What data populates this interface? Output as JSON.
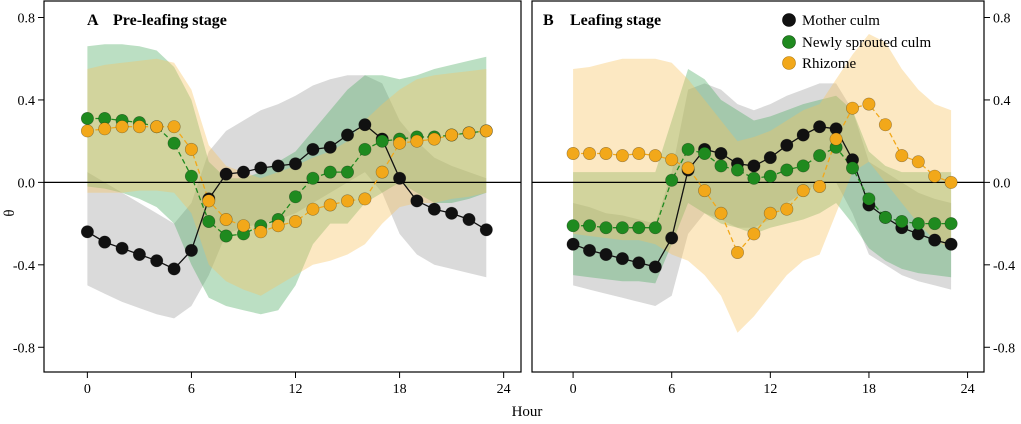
{
  "chart_data": {
    "type": "line",
    "xlabel": "Hour",
    "ylabel": "θ",
    "xlim": [
      -2.5,
      25
    ],
    "ylim": [
      -0.92,
      0.88
    ],
    "xticks": [
      "0",
      "6",
      "12",
      "18",
      "24"
    ],
    "yticks_left": [
      "0.8",
      "0.4",
      "0.0",
      "-0.4",
      "-0.8"
    ],
    "yticks_right": [
      "0.8",
      "0.4",
      "0.0",
      "-0.4",
      "-0.8"
    ],
    "legend": {
      "placement": "top-right",
      "entries": [
        "Mother culm",
        "Newly sprouted culm",
        "Rhizome"
      ]
    },
    "series_styles": [
      {
        "name": "Mother culm",
        "color": "#111111",
        "line": "solid",
        "band": "#9e9e9e"
      },
      {
        "name": "Newly sprouted culm",
        "color": "#1f8a1f",
        "line": "dashed",
        "band": "#4dab62"
      },
      {
        "name": "Rhizome",
        "color": "#f2a81a",
        "line": "dashed",
        "band": "#f6c35e"
      }
    ],
    "panels": [
      {
        "letter": "A",
        "title": "Pre-leafing stage",
        "x": [
          0,
          1,
          2,
          3,
          4,
          5,
          6,
          7,
          8,
          9,
          10,
          11,
          12,
          13,
          14,
          15,
          16,
          17,
          18,
          19,
          20,
          21,
          22,
          23
        ],
        "series": [
          {
            "name": "Mother culm",
            "values": [
              -0.24,
              -0.29,
              -0.32,
              -0.35,
              -0.38,
              -0.42,
              -0.33,
              -0.08,
              0.04,
              0.05,
              0.07,
              0.08,
              0.09,
              0.16,
              0.17,
              0.23,
              0.28,
              0.21,
              0.02,
              -0.09,
              -0.13,
              -0.15,
              -0.18,
              -0.23
            ],
            "upper": [
              0.05,
              0.0,
              -0.05,
              -0.1,
              -0.15,
              -0.2,
              -0.1,
              0.15,
              0.25,
              0.3,
              0.35,
              0.38,
              0.42,
              0.47,
              0.5,
              0.52,
              0.52,
              0.48,
              0.3,
              0.2,
              0.12,
              0.08,
              0.05,
              0.02
            ],
            "lower": [
              -0.5,
              -0.54,
              -0.58,
              -0.61,
              -0.64,
              -0.66,
              -0.6,
              -0.45,
              -0.25,
              -0.22,
              -0.2,
              -0.18,
              -0.15,
              -0.1,
              -0.05,
              0.0,
              0.05,
              -0.05,
              -0.25,
              -0.35,
              -0.4,
              -0.42,
              -0.44,
              -0.46
            ]
          },
          {
            "name": "Newly sprouted culm",
            "values": [
              0.31,
              0.31,
              0.3,
              0.29,
              0.27,
              0.19,
              0.03,
              -0.19,
              -0.26,
              -0.25,
              -0.21,
              -0.18,
              -0.07,
              0.02,
              0.05,
              0.05,
              0.16,
              0.2,
              0.21,
              0.22,
              0.22,
              0.23,
              0.24,
              0.25
            ],
            "upper": [
              0.66,
              0.67,
              0.67,
              0.66,
              0.64,
              0.56,
              0.4,
              0.1,
              0.02,
              0.02,
              0.05,
              0.1,
              0.15,
              0.25,
              0.35,
              0.45,
              0.52,
              0.52,
              0.5,
              0.52,
              0.55,
              0.57,
              0.59,
              0.61
            ],
            "lower": [
              -0.02,
              -0.03,
              -0.05,
              -0.08,
              -0.12,
              -0.2,
              -0.4,
              -0.56,
              -0.6,
              -0.62,
              -0.64,
              -0.62,
              -0.5,
              -0.3,
              -0.2,
              -0.2,
              -0.1,
              -0.05,
              0.0,
              -0.05,
              -0.1,
              -0.1,
              -0.08,
              -0.05
            ]
          },
          {
            "name": "Rhizome",
            "values": [
              0.25,
              0.26,
              0.27,
              0.27,
              0.27,
              0.27,
              0.16,
              -0.09,
              -0.18,
              -0.21,
              -0.24,
              -0.21,
              -0.19,
              -0.13,
              -0.11,
              -0.09,
              -0.08,
              0.05,
              0.19,
              0.2,
              0.21,
              0.23,
              0.24,
              0.25
            ],
            "upper": [
              0.55,
              0.57,
              0.58,
              0.59,
              0.6,
              0.58,
              0.45,
              0.18,
              0.08,
              0.05,
              0.02,
              0.05,
              0.08,
              0.12,
              0.15,
              0.2,
              0.3,
              0.38,
              0.45,
              0.5,
              0.52,
              0.53,
              0.54,
              0.55
            ],
            "lower": [
              -0.05,
              -0.05,
              -0.05,
              -0.04,
              -0.04,
              -0.05,
              -0.15,
              -0.4,
              -0.48,
              -0.52,
              -0.55,
              -0.5,
              -0.45,
              -0.4,
              -0.38,
              -0.35,
              -0.3,
              -0.2,
              -0.12,
              -0.1,
              -0.1,
              -0.08,
              -0.07,
              -0.05
            ]
          }
        ]
      },
      {
        "letter": "B",
        "title": "Leafing stage",
        "x": [
          0,
          1,
          2,
          3,
          4,
          5,
          6,
          7,
          8,
          9,
          10,
          11,
          12,
          13,
          14,
          15,
          16,
          17,
          18,
          19,
          20,
          21,
          22,
          23
        ],
        "series": [
          {
            "name": "Mother culm",
            "values": [
              -0.3,
              -0.33,
              -0.35,
              -0.37,
              -0.39,
              -0.41,
              -0.27,
              0.06,
              0.16,
              0.14,
              0.09,
              0.08,
              0.12,
              0.18,
              0.23,
              0.27,
              0.26,
              0.11,
              -0.11,
              -0.17,
              -0.22,
              -0.25,
              -0.28,
              -0.3
            ],
            "upper": [
              -0.1,
              -0.12,
              -0.15,
              -0.16,
              -0.18,
              -0.2,
              0.05,
              0.45,
              0.48,
              0.45,
              0.38,
              0.35,
              0.38,
              0.42,
              0.45,
              0.48,
              0.48,
              0.35,
              0.1,
              0.05,
              0.0,
              -0.05,
              -0.08,
              -0.1
            ],
            "lower": [
              -0.5,
              -0.52,
              -0.54,
              -0.56,
              -0.58,
              -0.6,
              -0.55,
              -0.25,
              -0.15,
              -0.18,
              -0.22,
              -0.22,
              -0.18,
              -0.1,
              -0.05,
              0.0,
              0.0,
              -0.15,
              -0.35,
              -0.4,
              -0.45,
              -0.48,
              -0.5,
              -0.52
            ]
          },
          {
            "name": "Newly sprouted culm",
            "values": [
              -0.21,
              -0.21,
              -0.22,
              -0.22,
              -0.22,
              -0.22,
              0.01,
              0.16,
              0.14,
              0.08,
              0.06,
              0.02,
              0.03,
              0.06,
              0.08,
              0.13,
              0.17,
              0.07,
              -0.08,
              -0.17,
              -0.19,
              -0.2,
              -0.2,
              -0.2
            ],
            "upper": [
              0.05,
              0.05,
              0.05,
              0.05,
              0.05,
              0.05,
              0.3,
              0.55,
              0.5,
              0.4,
              0.35,
              0.3,
              0.32,
              0.35,
              0.38,
              0.4,
              0.42,
              0.35,
              0.15,
              0.08,
              0.05,
              0.05,
              0.05,
              0.05
            ],
            "lower": [
              -0.45,
              -0.46,
              -0.47,
              -0.48,
              -0.48,
              -0.49,
              -0.3,
              -0.1,
              -0.15,
              -0.2,
              -0.22,
              -0.25,
              -0.22,
              -0.2,
              -0.18,
              -0.15,
              -0.1,
              -0.2,
              -0.32,
              -0.38,
              -0.42,
              -0.44,
              -0.45,
              -0.46
            ]
          },
          {
            "name": "Rhizome",
            "values": [
              0.14,
              0.14,
              0.14,
              0.13,
              0.14,
              0.13,
              0.11,
              0.07,
              -0.04,
              -0.15,
              -0.34,
              -0.25,
              -0.15,
              -0.13,
              -0.04,
              -0.02,
              0.21,
              0.36,
              0.38,
              0.28,
              0.13,
              0.1,
              0.03,
              0.0
            ],
            "upper": [
              0.55,
              0.56,
              0.58,
              0.6,
              0.6,
              0.6,
              0.58,
              0.5,
              0.4,
              0.3,
              0.2,
              0.22,
              0.25,
              0.3,
              0.35,
              0.38,
              0.5,
              0.62,
              0.72,
              0.68,
              0.55,
              0.45,
              0.38,
              0.35
            ],
            "lower": [
              -0.25,
              -0.26,
              -0.27,
              -0.28,
              -0.28,
              -0.3,
              -0.35,
              -0.38,
              -0.45,
              -0.55,
              -0.73,
              -0.65,
              -0.55,
              -0.45,
              -0.38,
              -0.35,
              -0.15,
              0.05,
              0.1,
              0.0,
              -0.1,
              -0.2,
              -0.28,
              -0.32
            ]
          }
        ]
      }
    ]
  }
}
